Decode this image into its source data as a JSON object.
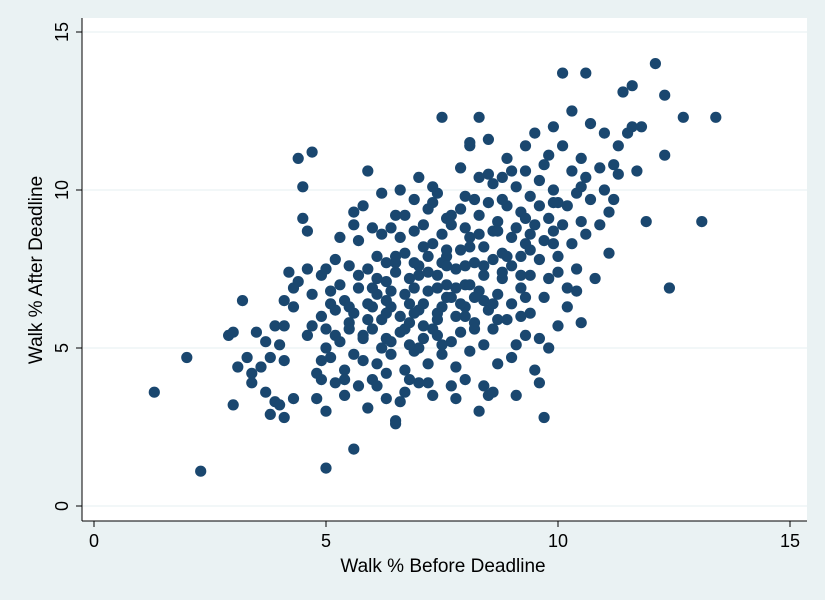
{
  "chart_data": {
    "type": "scatter",
    "xlabel": "Walk % Before Deadline",
    "ylabel": "Walk % After Deadline",
    "xlim": [
      0,
      15
    ],
    "ylim": [
      0,
      15
    ],
    "xticks": [
      "0",
      "5",
      "10",
      "15"
    ],
    "yticks": [
      "0",
      "5",
      "10",
      "15"
    ],
    "grid": "horizontal",
    "colors": {
      "background": "#eaf2f3",
      "plot_area": "#ffffff",
      "marker": "#1a476f",
      "grid": "#eaf2f3"
    },
    "points": [
      [
        1.3,
        3.6
      ],
      [
        2.0,
        4.7
      ],
      [
        2.3,
        1.1
      ],
      [
        2.9,
        5.4
      ],
      [
        3.0,
        3.2
      ],
      [
        3.0,
        5.5
      ],
      [
        3.1,
        4.4
      ],
      [
        3.2,
        6.5
      ],
      [
        3.3,
        4.7
      ],
      [
        3.4,
        3.9
      ],
      [
        3.4,
        4.2
      ],
      [
        3.5,
        5.5
      ],
      [
        3.6,
        4.4
      ],
      [
        3.7,
        3.6
      ],
      [
        3.7,
        5.2
      ],
      [
        3.8,
        2.9
      ],
      [
        3.8,
        4.7
      ],
      [
        3.9,
        5.7
      ],
      [
        3.9,
        3.3
      ],
      [
        4.0,
        3.2
      ],
      [
        4.0,
        5.1
      ],
      [
        4.1,
        2.8
      ],
      [
        4.1,
        4.6
      ],
      [
        4.1,
        5.7
      ],
      [
        4.1,
        6.5
      ],
      [
        4.2,
        7.4
      ],
      [
        4.3,
        6.3
      ],
      [
        4.3,
        3.4
      ],
      [
        4.4,
        11.0
      ],
      [
        4.4,
        7.1
      ],
      [
        4.5,
        10.1
      ],
      [
        4.5,
        9.1
      ],
      [
        4.6,
        8.7
      ],
      [
        4.6,
        7.5
      ],
      [
        4.7,
        11.2
      ],
      [
        4.7,
        5.7
      ],
      [
        4.8,
        4.2
      ],
      [
        4.8,
        3.4
      ],
      [
        4.9,
        7.3
      ],
      [
        4.9,
        6.0
      ],
      [
        4.9,
        4.0
      ],
      [
        5.0,
        1.2
      ],
      [
        5.0,
        3.0
      ],
      [
        5.0,
        7.5
      ],
      [
        5.0,
        5.6
      ],
      [
        5.1,
        4.7
      ],
      [
        5.1,
        6.8
      ],
      [
        5.2,
        5.4
      ],
      [
        5.2,
        3.9
      ],
      [
        5.3,
        8.5
      ],
      [
        5.3,
        7.0
      ],
      [
        5.3,
        5.2
      ],
      [
        5.4,
        3.5
      ],
      [
        5.4,
        6.5
      ],
      [
        5.4,
        4.3
      ],
      [
        5.5,
        7.6
      ],
      [
        5.5,
        5.8
      ],
      [
        5.6,
        4.8
      ],
      [
        5.6,
        1.8
      ],
      [
        5.6,
        9.3
      ],
      [
        5.6,
        6.1
      ],
      [
        5.7,
        8.4
      ],
      [
        5.7,
        7.3
      ],
      [
        5.7,
        3.8
      ],
      [
        5.8,
        9.5
      ],
      [
        5.8,
        5.3
      ],
      [
        5.9,
        10.6
      ],
      [
        5.9,
        7.5
      ],
      [
        5.9,
        6.4
      ],
      [
        5.9,
        3.1
      ],
      [
        6.0,
        8.8
      ],
      [
        6.0,
        4.0
      ],
      [
        6.0,
        5.6
      ],
      [
        6.1,
        7.9
      ],
      [
        6.1,
        6.7
      ],
      [
        6.1,
        4.5
      ],
      [
        6.2,
        8.6
      ],
      [
        6.2,
        5.9
      ],
      [
        6.3,
        7.1
      ],
      [
        6.3,
        3.4
      ],
      [
        6.3,
        6.5
      ],
      [
        6.4,
        8.8
      ],
      [
        6.4,
        5.2
      ],
      [
        6.4,
        4.8
      ],
      [
        6.5,
        2.6
      ],
      [
        6.5,
        2.7
      ],
      [
        6.5,
        7.7
      ],
      [
        6.5,
        9.2
      ],
      [
        6.6,
        6.0
      ],
      [
        6.6,
        5.5
      ],
      [
        6.6,
        10.0
      ],
      [
        6.7,
        8.0
      ],
      [
        6.7,
        4.3
      ],
      [
        6.7,
        3.6
      ],
      [
        6.8,
        7.2
      ],
      [
        6.8,
        6.4
      ],
      [
        6.8,
        5.8
      ],
      [
        6.9,
        8.7
      ],
      [
        6.9,
        9.7
      ],
      [
        6.9,
        4.9
      ],
      [
        7.0,
        10.4
      ],
      [
        7.0,
        7.6
      ],
      [
        7.0,
        6.2
      ],
      [
        7.0,
        3.9
      ],
      [
        7.1,
        8.9
      ],
      [
        7.1,
        5.3
      ],
      [
        7.2,
        9.4
      ],
      [
        7.2,
        7.9
      ],
      [
        7.2,
        6.8
      ],
      [
        7.2,
        4.5
      ],
      [
        7.3,
        8.3
      ],
      [
        7.3,
        5.6
      ],
      [
        7.3,
        3.5
      ],
      [
        7.4,
        9.9
      ],
      [
        7.4,
        7.3
      ],
      [
        7.4,
        6.1
      ],
      [
        7.5,
        8.6
      ],
      [
        7.5,
        4.8
      ],
      [
        7.5,
        12.3
      ],
      [
        7.6,
        9.1
      ],
      [
        7.6,
        7.9
      ],
      [
        7.6,
        6.6
      ],
      [
        7.7,
        5.2
      ],
      [
        7.7,
        3.8
      ],
      [
        7.7,
        8.9
      ],
      [
        7.8,
        7.5
      ],
      [
        7.8,
        6.0
      ],
      [
        7.8,
        4.4
      ],
      [
        7.9,
        9.4
      ],
      [
        7.9,
        8.1
      ],
      [
        7.9,
        5.5
      ],
      [
        8.0,
        7.0
      ],
      [
        8.0,
        6.3
      ],
      [
        8.0,
        9.8
      ],
      [
        8.1,
        8.5
      ],
      [
        8.1,
        4.9
      ],
      [
        8.1,
        11.4
      ],
      [
        8.1,
        11.5
      ],
      [
        8.2,
        7.7
      ],
      [
        8.2,
        5.8
      ],
      [
        8.3,
        9.2
      ],
      [
        8.3,
        6.8
      ],
      [
        8.3,
        12.3
      ],
      [
        8.3,
        3.0
      ],
      [
        8.4,
        8.2
      ],
      [
        8.4,
        7.3
      ],
      [
        8.4,
        5.1
      ],
      [
        8.5,
        10.5
      ],
      [
        8.5,
        9.6
      ],
      [
        8.5,
        6.2
      ],
      [
        8.5,
        3.5
      ],
      [
        8.6,
        8.7
      ],
      [
        8.6,
        7.8
      ],
      [
        8.6,
        5.6
      ],
      [
        8.6,
        3.6
      ],
      [
        8.7,
        9.0
      ],
      [
        8.7,
        6.7
      ],
      [
        8.7,
        4.5
      ],
      [
        8.8,
        10.4
      ],
      [
        8.8,
        8.0
      ],
      [
        8.8,
        7.2
      ],
      [
        8.9,
        11.0
      ],
      [
        8.9,
        9.5
      ],
      [
        8.9,
        5.9
      ],
      [
        9.0,
        8.5
      ],
      [
        9.0,
        7.6
      ],
      [
        9.0,
        6.4
      ],
      [
        9.1,
        10.1
      ],
      [
        9.1,
        8.8
      ],
      [
        9.1,
        5.1
      ],
      [
        9.1,
        3.5
      ],
      [
        9.2,
        9.3
      ],
      [
        9.2,
        7.9
      ],
      [
        9.2,
        6.9
      ],
      [
        9.3,
        10.6
      ],
      [
        9.3,
        11.4
      ],
      [
        9.3,
        8.3
      ],
      [
        9.3,
        5.4
      ],
      [
        9.4,
        9.8
      ],
      [
        9.4,
        7.3
      ],
      [
        9.4,
        6.1
      ],
      [
        9.5,
        11.8
      ],
      [
        9.5,
        8.9
      ],
      [
        9.5,
        4.3
      ],
      [
        9.6,
        10.3
      ],
      [
        9.6,
        9.5
      ],
      [
        9.6,
        7.8
      ],
      [
        9.6,
        3.9
      ],
      [
        9.7,
        10.8
      ],
      [
        9.7,
        8.4
      ],
      [
        9.7,
        6.6
      ],
      [
        9.7,
        2.8
      ],
      [
        9.8,
        11.1
      ],
      [
        9.8,
        9.1
      ],
      [
        9.8,
        7.2
      ],
      [
        9.8,
        5.0
      ],
      [
        9.9,
        10.0
      ],
      [
        9.9,
        8.7
      ],
      [
        9.9,
        12.0
      ],
      [
        10.0,
        9.6
      ],
      [
        10.0,
        7.9
      ],
      [
        10.0,
        5.7
      ],
      [
        10.1,
        8.9
      ],
      [
        10.1,
        11.4
      ],
      [
        10.1,
        13.7
      ],
      [
        10.2,
        9.5
      ],
      [
        10.2,
        6.3
      ],
      [
        10.3,
        10.6
      ],
      [
        10.3,
        8.3
      ],
      [
        10.3,
        12.5
      ],
      [
        10.4,
        9.9
      ],
      [
        10.4,
        7.5
      ],
      [
        10.4,
        6.8
      ],
      [
        10.5,
        11.0
      ],
      [
        10.5,
        9.0
      ],
      [
        10.5,
        5.8
      ],
      [
        10.6,
        13.7
      ],
      [
        10.6,
        10.4
      ],
      [
        10.6,
        8.6
      ],
      [
        10.7,
        12.1
      ],
      [
        10.7,
        9.7
      ],
      [
        10.8,
        7.2
      ],
      [
        10.9,
        10.7
      ],
      [
        10.9,
        8.9
      ],
      [
        11.0,
        11.8
      ],
      [
        11.0,
        10.0
      ],
      [
        11.1,
        8.0
      ],
      [
        11.1,
        9.3
      ],
      [
        11.2,
        10.8
      ],
      [
        11.2,
        9.7
      ],
      [
        11.3,
        11.4
      ],
      [
        11.3,
        10.5
      ],
      [
        11.4,
        13.1
      ],
      [
        11.5,
        11.8
      ],
      [
        11.6,
        13.3
      ],
      [
        11.6,
        12.0
      ],
      [
        11.7,
        10.6
      ],
      [
        11.8,
        12.0
      ],
      [
        11.9,
        9.0
      ],
      [
        12.1,
        14.0
      ],
      [
        12.3,
        13.0
      ],
      [
        12.3,
        11.1
      ],
      [
        12.4,
        6.9
      ],
      [
        12.7,
        12.3
      ],
      [
        13.1,
        9.0
      ],
      [
        13.4,
        12.3
      ],
      [
        6.2,
        5.0
      ],
      [
        6.9,
        6.1
      ],
      [
        7.4,
        5.4
      ],
      [
        7.8,
        6.9
      ],
      [
        8.2,
        9.7
      ],
      [
        8.6,
        10.2
      ],
      [
        6.5,
        7.4
      ],
      [
        7.1,
        8.2
      ],
      [
        7.6,
        7.0
      ],
      [
        8.0,
        8.8
      ],
      [
        8.4,
        6.5
      ],
      [
        8.8,
        9.7
      ],
      [
        9.2,
        6.0
      ],
      [
        5.5,
        6.3
      ],
      [
        6.0,
        6.9
      ],
      [
        6.6,
        8.5
      ],
      [
        7.3,
        9.6
      ],
      [
        7.9,
        10.7
      ],
      [
        8.5,
        11.6
      ],
      [
        9.0,
        10.6
      ],
      [
        5.8,
        4.6
      ],
      [
        6.3,
        4.2
      ],
      [
        6.8,
        4.0
      ],
      [
        7.0,
        5.0
      ],
      [
        7.5,
        5.1
      ],
      [
        8.0,
        4.0
      ],
      [
        8.7,
        5.9
      ],
      [
        9.3,
        6.6
      ],
      [
        9.9,
        8.3
      ],
      [
        5.2,
        7.8
      ],
      [
        5.6,
        8.9
      ],
      [
        6.2,
        9.9
      ],
      [
        6.7,
        9.2
      ],
      [
        7.3,
        10.1
      ],
      [
        7.7,
        9.2
      ],
      [
        8.3,
        10.4
      ],
      [
        8.9,
        7.9
      ],
      [
        9.4,
        8.6
      ],
      [
        10.0,
        7.4
      ],
      [
        4.9,
        4.6
      ],
      [
        5.4,
        4.0
      ],
      [
        6.1,
        3.8
      ],
      [
        6.6,
        3.3
      ],
      [
        7.2,
        3.9
      ],
      [
        7.8,
        3.4
      ],
      [
        8.4,
        3.8
      ],
      [
        9.0,
        4.7
      ],
      [
        9.6,
        5.3
      ],
      [
        10.2,
        6.9
      ],
      [
        5.1,
        6.4
      ],
      [
        5.7,
        6.9
      ],
      [
        6.3,
        7.7
      ],
      [
        6.9,
        6.9
      ],
      [
        7.5,
        7.7
      ],
      [
        8.1,
        8.2
      ],
      [
        8.7,
        8.7
      ],
      [
        9.3,
        9.1
      ],
      [
        9.9,
        9.6
      ],
      [
        10.5,
        10.1
      ],
      [
        4.6,
        5.4
      ],
      [
        5.0,
        5.0
      ],
      [
        5.5,
        5.6
      ],
      [
        6.0,
        6.3
      ],
      [
        6.4,
        6.8
      ],
      [
        7.0,
        7.3
      ],
      [
        7.6,
        7.6
      ],
      [
        8.2,
        6.6
      ],
      [
        8.8,
        7.4
      ],
      [
        9.4,
        8.1
      ],
      [
        4.3,
        6.9
      ],
      [
        4.7,
        6.7
      ],
      [
        5.2,
        6.2
      ],
      [
        5.8,
        5.4
      ],
      [
        6.3,
        5.3
      ],
      [
        6.8,
        5.1
      ],
      [
        7.4,
        5.9
      ],
      [
        8.0,
        6.0
      ],
      [
        8.6,
        6.4
      ],
      [
        9.2,
        7.3
      ],
      [
        6.4,
        6.3
      ],
      [
        6.7,
        6.7
      ],
      [
        7.1,
        6.4
      ],
      [
        7.4,
        6.9
      ],
      [
        7.7,
        6.6
      ],
      [
        8.1,
        7.0
      ],
      [
        8.4,
        7.6
      ],
      [
        6.1,
        7.2
      ],
      [
        6.5,
        7.9
      ],
      [
        6.9,
        7.7
      ],
      [
        7.2,
        7.4
      ],
      [
        7.6,
        8.1
      ],
      [
        8.0,
        7.6
      ],
      [
        8.3,
        8.6
      ],
      [
        5.9,
        5.9
      ],
      [
        6.3,
        6.1
      ],
      [
        6.7,
        5.6
      ],
      [
        7.1,
        5.7
      ],
      [
        7.5,
        6.3
      ],
      [
        7.9,
        6.4
      ],
      [
        8.2,
        5.6
      ]
    ]
  }
}
